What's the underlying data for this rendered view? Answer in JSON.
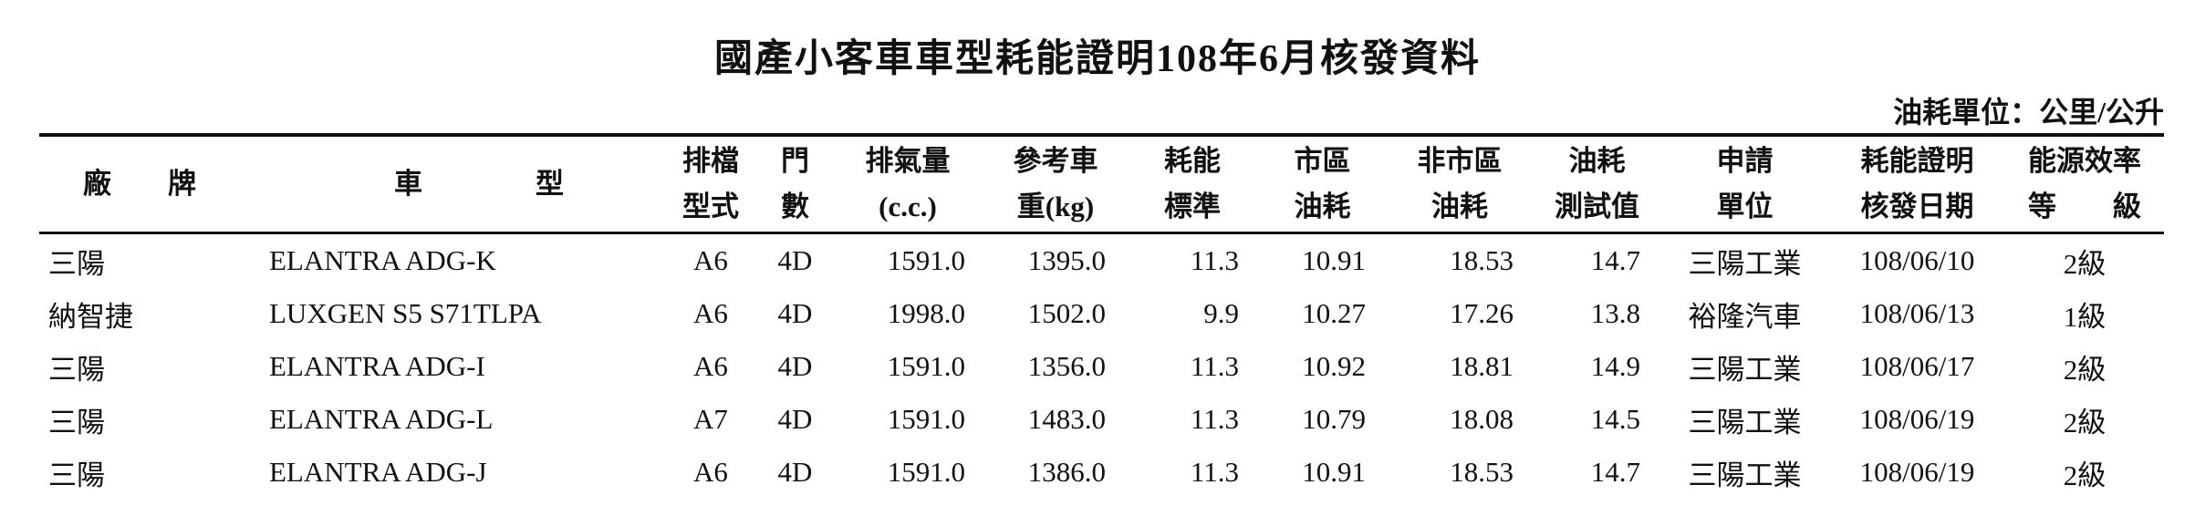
{
  "title": "國產小客車車型耗能證明108年6月核發資料",
  "unit_note": "油耗單位：公里/公升",
  "table": {
    "header": [
      [
        "廠　　牌"
      ],
      [
        "車　　　　型"
      ],
      [
        "排檔",
        "型式"
      ],
      [
        "門",
        "數"
      ],
      [
        "排氣量",
        "(c.c.)"
      ],
      [
        "參考車",
        "重(kg)"
      ],
      [
        "耗能",
        "標準"
      ],
      [
        "市區",
        "油耗"
      ],
      [
        "非市區",
        "油耗"
      ],
      [
        "油耗",
        "測試值"
      ],
      [
        "申請",
        "單位"
      ],
      [
        "耗能證明",
        "核發日期"
      ],
      [
        "能源效率",
        "等　　級"
      ]
    ],
    "rows": [
      [
        "三陽",
        "ELANTRA ADG-K",
        "A6",
        "4D",
        "1591.0",
        "1395.0",
        "11.3",
        "10.91",
        "18.53",
        "14.7",
        "三陽工業",
        "108/06/10",
        "2級"
      ],
      [
        "納智捷",
        "LUXGEN S5 S71TLPA",
        "A6",
        "4D",
        "1998.0",
        "1502.0",
        "9.9",
        "10.27",
        "17.26",
        "13.8",
        "裕隆汽車",
        "108/06/13",
        "1級"
      ],
      [
        "三陽",
        "ELANTRA ADG-I",
        "A6",
        "4D",
        "1591.0",
        "1356.0",
        "11.3",
        "10.92",
        "18.81",
        "14.9",
        "三陽工業",
        "108/06/17",
        "2級"
      ],
      [
        "三陽",
        "ELANTRA ADG-L",
        "A7",
        "4D",
        "1591.0",
        "1483.0",
        "11.3",
        "10.79",
        "18.08",
        "14.5",
        "三陽工業",
        "108/06/19",
        "2級"
      ],
      [
        "三陽",
        "ELANTRA ADG-J",
        "A6",
        "4D",
        "1591.0",
        "1386.0",
        "11.3",
        "10.91",
        "18.53",
        "14.7",
        "三陽工業",
        "108/06/19",
        "2級"
      ]
    ]
  }
}
